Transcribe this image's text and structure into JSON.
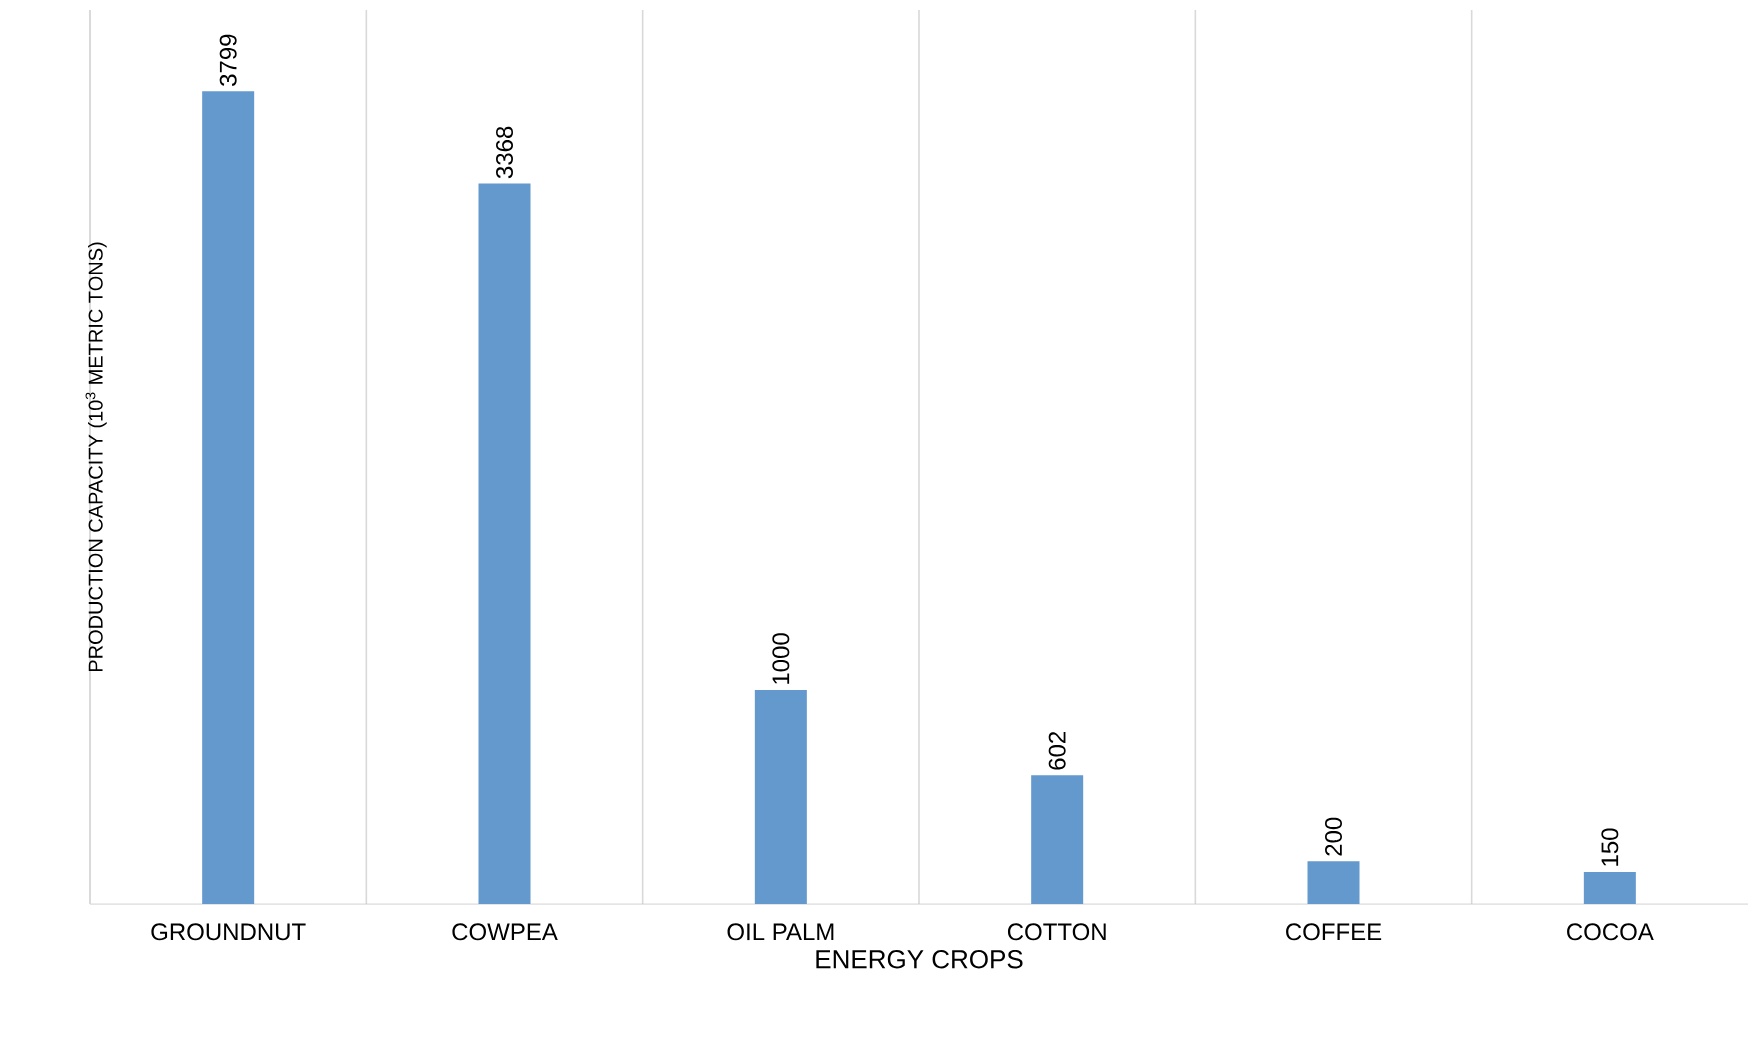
{
  "chart_data": {
    "type": "bar",
    "xlabel": "ENERGY CROPS",
    "ylabel": "PRODUCTION CAPACITY (10$^{3}$ METRIC TONS)",
    "categories": [
      "GROUNDNUT",
      "COWPEA",
      "OIL PALM",
      "COTTON",
      "COFFEE",
      "COCOA"
    ],
    "values": [
      3799,
      3368,
      1000,
      602,
      200,
      150
    ],
    "color": "#6399cc",
    "data_labels": true,
    "grid": "x"
  }
}
